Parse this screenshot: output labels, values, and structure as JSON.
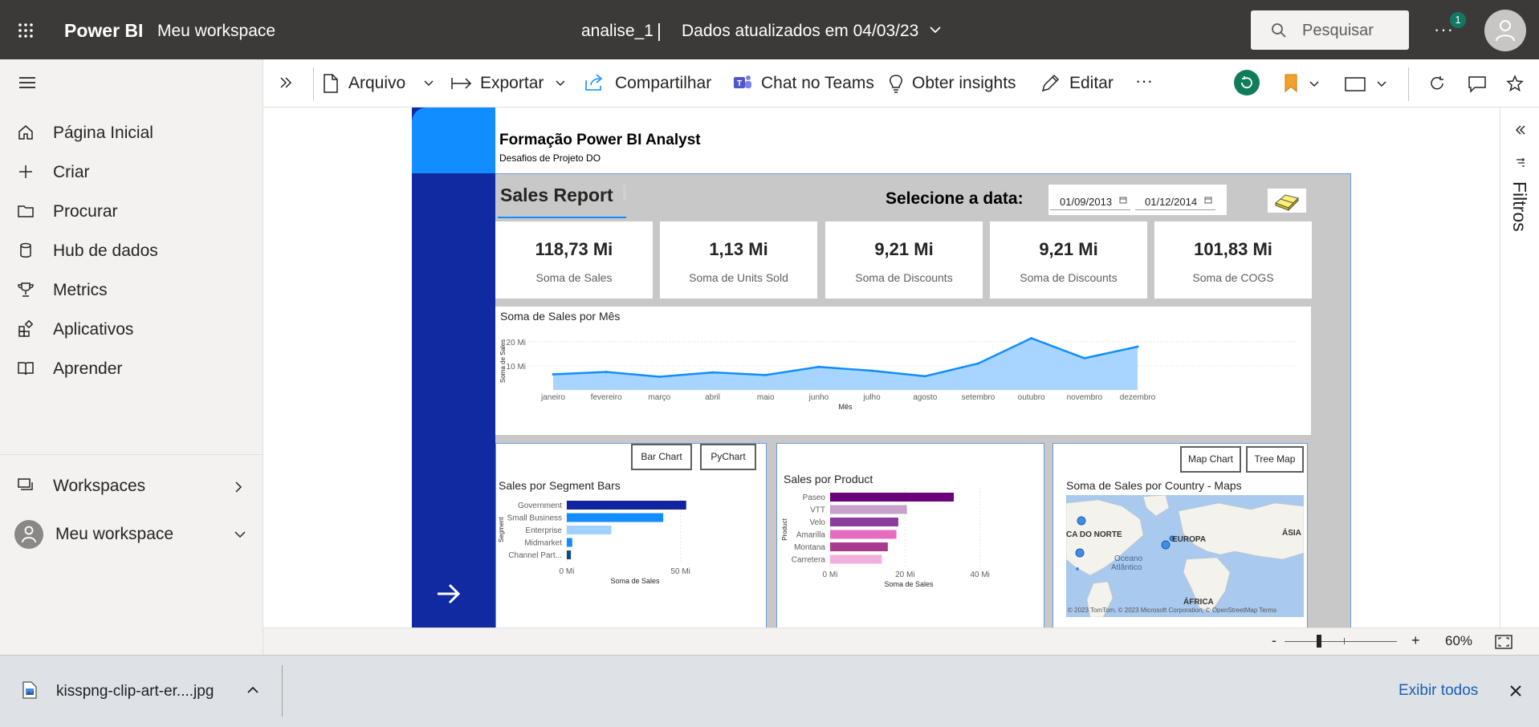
{
  "header": {
    "brand": "Power BI",
    "workspace": "Meu workspace",
    "report_name": "analise_1",
    "separator": "|",
    "updated": "Dados atualizados em 04/03/23",
    "search_placeholder": "Pesquisar",
    "more": "···",
    "notification_count": "1"
  },
  "nav": {
    "items": [
      {
        "label": "Página Inicial",
        "icon": "home-icon"
      },
      {
        "label": "Criar",
        "icon": "plus-icon"
      },
      {
        "label": "Procurar",
        "icon": "folder-icon"
      },
      {
        "label": "Hub de dados",
        "icon": "database-icon"
      },
      {
        "label": "Metrics",
        "icon": "trophy-icon"
      },
      {
        "label": "Aplicativos",
        "icon": "apps-icon"
      },
      {
        "label": "Aprender",
        "icon": "book-icon"
      }
    ],
    "workspaces": "Workspaces",
    "my_workspace": "Meu workspace"
  },
  "toolbar": {
    "arquivo": "Arquivo",
    "exportar": "Exportar",
    "compartilhar": "Compartilhar",
    "chat_teams": "Chat no Teams",
    "insights": "Obter insights",
    "editar": "Editar",
    "more": "···"
  },
  "filters_pane": {
    "label": "Filtros"
  },
  "report": {
    "title": "Formação Power BI Analyst",
    "subtitle": "Desafios de Projeto DO",
    "page_title": "Sales Report",
    "date_label": "Selecione a data:",
    "date_start": "01/09/2013",
    "date_end": "01/12/2014",
    "cards": [
      {
        "value": "118,73 Mi",
        "label": "Soma de  Sales"
      },
      {
        "value": "1,13 Mi",
        "label": "Soma de Units Sold"
      },
      {
        "value": "9,21 Mi",
        "label": "Soma de Discounts"
      },
      {
        "value": "9,21 Mi",
        "label": "Soma de Discounts"
      },
      {
        "value": "101,83 Mi",
        "label": "Soma de COGS"
      }
    ],
    "line_chart_title": "Soma de Sales por Mês",
    "segment": {
      "title": "Sales por Segment Bars",
      "btn_bar": "Bar Chart",
      "btn_pie": "PyChart"
    },
    "product": {
      "title": "Sales por Product"
    },
    "map": {
      "title": "Soma de Sales por Country - Maps",
      "btn_map": "Map Chart",
      "btn_tree": "Tree Map",
      "labels": [
        "CA DO NORTE",
        "EUROPA",
        "ÁSIA",
        "Oceano",
        "Atlântico",
        "ÁFRICA"
      ],
      "attribution": "© 2023 TomTom, © 2023 Microsoft Corporation, © OpenStreetMap  Terms"
    }
  },
  "chart_data": [
    {
      "type": "area",
      "title": "Soma de Sales por Mês",
      "xlabel": "Mês",
      "ylabel": "Soma de Sales",
      "categories": [
        "janeiro",
        "fevereiro",
        "março",
        "abril",
        "maio",
        "junho",
        "julho",
        "agosto",
        "setembro",
        "outubro",
        "novembro",
        "dezembro"
      ],
      "values": [
        6.5,
        7.5,
        5.5,
        7.3,
        6.2,
        9.6,
        8.0,
        5.7,
        11.0,
        21.5,
        13.2,
        18.0
      ],
      "yticks": [
        "10 Mi",
        "20 Mi"
      ],
      "ytick_values": [
        10,
        20
      ],
      "ylim": [
        0,
        24
      ],
      "color": "#118dff"
    },
    {
      "type": "bar",
      "title": "Sales por Segment Bars",
      "xlabel": "Soma de Sales",
      "ylabel": "Segment",
      "categories": [
        "Government",
        "Small Business",
        "Enterprise",
        "Midmarket",
        "Channel Part..."
      ],
      "values": [
        52.5,
        42.4,
        19.6,
        2.4,
        1.8
      ],
      "colors": [
        "#12239e",
        "#118dff",
        "#a0d1ff",
        "#118dff",
        "#0c4a8f"
      ],
      "xticks": [
        "0 Mi",
        "50 Mi"
      ],
      "xtick_values": [
        0,
        50
      ],
      "xlim": [
        0,
        60
      ]
    },
    {
      "type": "bar",
      "title": "Sales por Product",
      "xlabel": "Soma de Sales",
      "ylabel": "Product",
      "categories": [
        "Paseo",
        "VTT",
        "Velo",
        "Amarilla",
        "Montana",
        "Carretera"
      ],
      "values": [
        33.0,
        20.5,
        18.2,
        17.7,
        15.4,
        13.8
      ],
      "colors": [
        "#6b007b",
        "#c7a0cc",
        "#8b3d9b",
        "#e66cbf",
        "#a83b8f",
        "#f0b0dc"
      ],
      "xticks": [
        "0 Mi",
        "20 Mi",
        "40 Mi"
      ],
      "xtick_values": [
        0,
        20,
        40
      ],
      "xlim": [
        0,
        42
      ]
    }
  ],
  "status": {
    "zoom": "60%",
    "minus": "-",
    "plus": "+"
  },
  "download": {
    "file": "kisspng-clip-art-er....jpg",
    "show_all": "Exibir todos"
  }
}
